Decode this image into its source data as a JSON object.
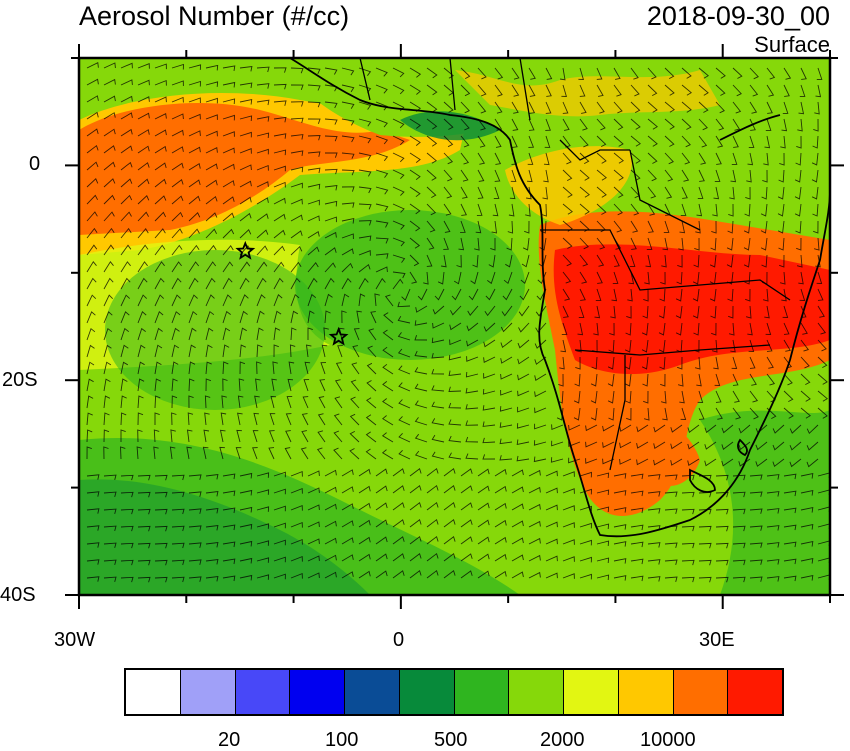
{
  "title": "Aerosol Number (#/cc)",
  "datetime": "2018-09-30_00",
  "level": "Surface",
  "map": {
    "lon_range": [
      -30,
      40
    ],
    "lat_range": [
      -40,
      10
    ],
    "lat_tick_labels": [
      "0",
      "20S",
      "40S"
    ],
    "lon_tick_labels": [
      "30W",
      "0",
      "30E"
    ],
    "markers": [
      {
        "symbol": "star",
        "lon": -14.5,
        "lat": -8.0
      },
      {
        "symbol": "star",
        "lon": -5.8,
        "lat": -16.0
      }
    ]
  },
  "colorbar": {
    "colors": [
      "#ffffff",
      "#a0a0f8",
      "#4848f8",
      "#0000f0",
      "#0a4c96",
      "#078a3a",
      "#2fb51f",
      "#86d80a",
      "#e2f612",
      "#ffc800",
      "#ff6e00",
      "#ff1a00"
    ],
    "labels": [
      "20",
      "100",
      "500",
      "2000",
      "10000"
    ]
  },
  "colors": {
    "ocean_background": "#86d80a",
    "very_high": "#ff1a00",
    "high": "#ff6e00",
    "medium_high": "#ffc800",
    "medium": "#e2f612",
    "medium_low": "#2fb51f",
    "low": "#078a3a",
    "wind_barbs": "#000000",
    "coastline": "#000000"
  }
}
